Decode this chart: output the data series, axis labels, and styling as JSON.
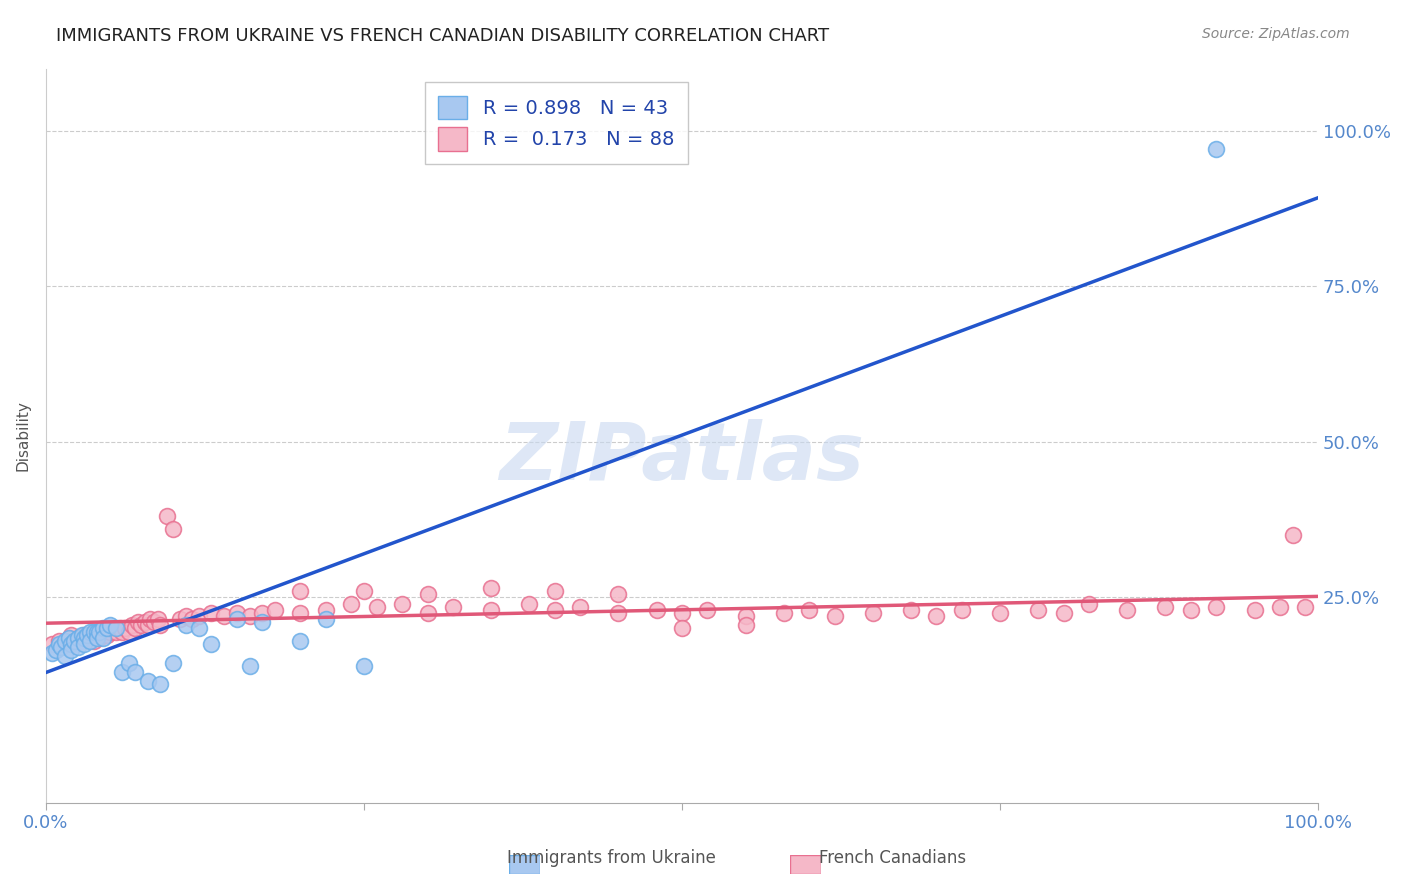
{
  "title": "IMMIGRANTS FROM UKRAINE VS FRENCH CANADIAN DISABILITY CORRELATION CHART",
  "source": "Source: ZipAtlas.com",
  "ylabel": "Disability",
  "ytick_labels": [
    "100.0%",
    "75.0%",
    "50.0%",
    "25.0%"
  ],
  "ytick_positions": [
    1.0,
    0.75,
    0.5,
    0.25
  ],
  "xlim": [
    0.0,
    1.0
  ],
  "ylim": [
    -0.08,
    1.1
  ],
  "ukraine_color": "#a8c8f0",
  "ukraine_edge": "#6aaee8",
  "french_color": "#f5b8c8",
  "french_edge": "#e87090",
  "ukraine_line_color": "#2255cc",
  "french_line_color": "#e05878",
  "watermark_color": "#c8d8f0",
  "legend_ukraine_R": "0.898",
  "legend_ukraine_N": "43",
  "legend_french_R": "0.173",
  "legend_french_N": "88",
  "ukraine_x": [
    0.005,
    0.008,
    0.01,
    0.012,
    0.015,
    0.015,
    0.018,
    0.02,
    0.02,
    0.022,
    0.025,
    0.025,
    0.028,
    0.03,
    0.03,
    0.032,
    0.035,
    0.035,
    0.038,
    0.04,
    0.04,
    0.042,
    0.045,
    0.045,
    0.048,
    0.05,
    0.055,
    0.06,
    0.065,
    0.07,
    0.08,
    0.09,
    0.1,
    0.11,
    0.12,
    0.13,
    0.15,
    0.16,
    0.17,
    0.2,
    0.22,
    0.25,
    0.92
  ],
  "ukraine_y": [
    0.16,
    0.165,
    0.175,
    0.17,
    0.18,
    0.155,
    0.185,
    0.175,
    0.165,
    0.18,
    0.185,
    0.17,
    0.19,
    0.185,
    0.175,
    0.19,
    0.195,
    0.18,
    0.195,
    0.195,
    0.185,
    0.195,
    0.2,
    0.185,
    0.2,
    0.205,
    0.2,
    0.13,
    0.145,
    0.13,
    0.115,
    0.11,
    0.145,
    0.205,
    0.2,
    0.175,
    0.215,
    0.14,
    0.21,
    0.18,
    0.215,
    0.14,
    0.97
  ],
  "french_x": [
    0.005,
    0.01,
    0.015,
    0.018,
    0.02,
    0.022,
    0.025,
    0.028,
    0.03,
    0.032,
    0.035,
    0.038,
    0.04,
    0.042,
    0.045,
    0.048,
    0.05,
    0.052,
    0.055,
    0.058,
    0.06,
    0.062,
    0.065,
    0.068,
    0.07,
    0.072,
    0.075,
    0.078,
    0.08,
    0.082,
    0.085,
    0.088,
    0.09,
    0.095,
    0.1,
    0.105,
    0.11,
    0.115,
    0.12,
    0.13,
    0.14,
    0.15,
    0.16,
    0.17,
    0.18,
    0.2,
    0.22,
    0.24,
    0.26,
    0.28,
    0.3,
    0.32,
    0.35,
    0.38,
    0.4,
    0.42,
    0.45,
    0.48,
    0.5,
    0.52,
    0.55,
    0.58,
    0.6,
    0.62,
    0.65,
    0.68,
    0.7,
    0.72,
    0.75,
    0.78,
    0.8,
    0.82,
    0.85,
    0.88,
    0.9,
    0.92,
    0.95,
    0.97,
    0.99,
    0.2,
    0.25,
    0.3,
    0.35,
    0.4,
    0.45,
    0.5,
    0.55,
    0.98
  ],
  "french_y": [
    0.175,
    0.18,
    0.175,
    0.185,
    0.19,
    0.18,
    0.185,
    0.18,
    0.19,
    0.185,
    0.19,
    0.18,
    0.195,
    0.185,
    0.195,
    0.19,
    0.195,
    0.2,
    0.195,
    0.2,
    0.195,
    0.2,
    0.195,
    0.205,
    0.2,
    0.21,
    0.205,
    0.21,
    0.205,
    0.215,
    0.21,
    0.215,
    0.205,
    0.38,
    0.36,
    0.215,
    0.22,
    0.215,
    0.22,
    0.225,
    0.22,
    0.225,
    0.22,
    0.225,
    0.23,
    0.225,
    0.23,
    0.24,
    0.235,
    0.24,
    0.225,
    0.235,
    0.23,
    0.24,
    0.23,
    0.235,
    0.225,
    0.23,
    0.225,
    0.23,
    0.22,
    0.225,
    0.23,
    0.22,
    0.225,
    0.23,
    0.22,
    0.23,
    0.225,
    0.23,
    0.225,
    0.24,
    0.23,
    0.235,
    0.23,
    0.235,
    0.23,
    0.235,
    0.235,
    0.26,
    0.26,
    0.255,
    0.265,
    0.26,
    0.255,
    0.2,
    0.205,
    0.35
  ]
}
